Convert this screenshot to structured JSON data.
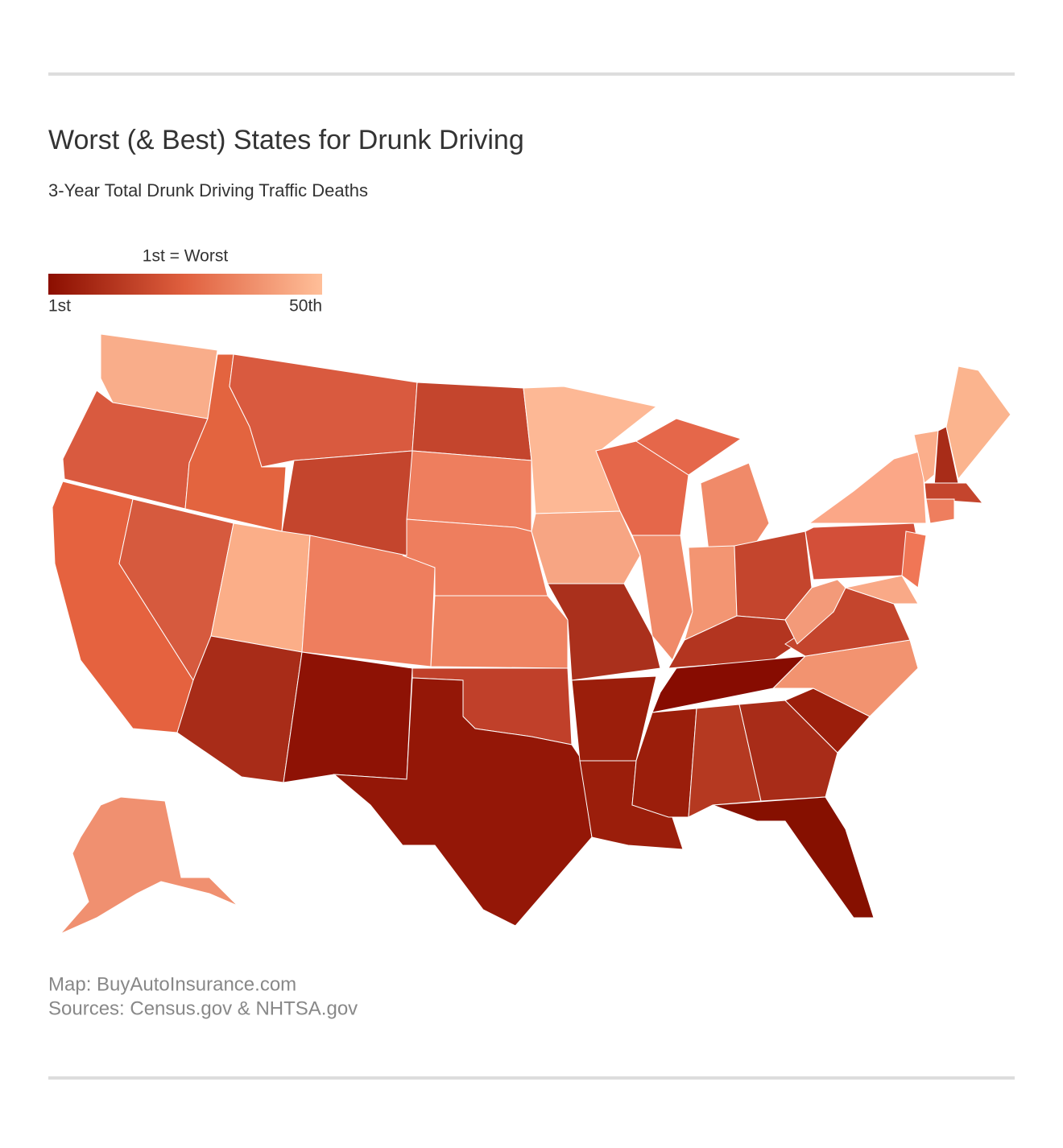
{
  "header": {
    "title": "Worst (& Best) States for Drunk Driving",
    "subtitle": "3-Year Total Drunk Driving Traffic Deaths"
  },
  "legend": {
    "title": "1st = Worst",
    "min_label": "1st",
    "max_label": "50th",
    "colors": [
      "#8b0e00",
      "#e0603f",
      "#ffbf99"
    ]
  },
  "map": {
    "region_colors": [
      "#f9ad8a",
      "#d95a3f",
      "#e5623f",
      "#d65a3e",
      "#e3643f",
      "#d95a3f",
      "#c4452d",
      "#fbae88",
      "#a82c18",
      "#ee7e5e",
      "#8e1205",
      "#c4452d",
      "#ee7e5e",
      "#ee7e5e",
      "#ef8462",
      "#c0402a",
      "#941707",
      "#fdb895",
      "#f7a583",
      "#aa301c",
      "#9b1e0b",
      "#9b1e0b",
      "#e5674a",
      "#f08a69",
      "#f08a69",
      "#e5674a",
      "#f39572",
      "#c4452d",
      "#b33520",
      "#870c01",
      "#9b1e0b",
      "#b53921",
      "#a82c18",
      "#861000",
      "#9b1e0b",
      "#f29370",
      "#c4452d",
      "#f39a79",
      "#d34f39",
      "#f9a987",
      "#fba787",
      "#f07656",
      "#fbae8b",
      "#a82c18",
      "#fbb48e",
      "#c4452d",
      "#ee7e5e",
      "#f09070"
    ]
  },
  "footer": {
    "lines": [
      "Map: BuyAutoInsurance.com",
      "Sources: Census.gov & NHTSA.gov"
    ]
  }
}
